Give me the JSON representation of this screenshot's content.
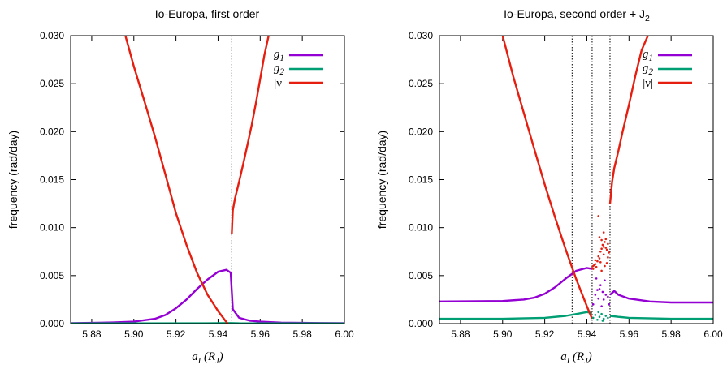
{
  "chart_data": [
    {
      "type": "line",
      "title": "Io-Europa, first order",
      "ylabel": "frequency (rad/day)",
      "xlabel_main": "a",
      "xlabel_sub": "I",
      "xlabel_unit_main": "R",
      "xlabel_unit_sub": "J",
      "xlim": [
        5.87,
        6.0
      ],
      "ylim": [
        0,
        0.03
      ],
      "xticks": [
        "5.88",
        "5.90",
        "5.92",
        "5.94",
        "5.96",
        "5.98",
        "6.00"
      ],
      "yticks": [
        "0.000",
        "0.005",
        "0.010",
        "0.015",
        "0.020",
        "0.025",
        "0.030"
      ],
      "vlines": [
        5.9465
      ],
      "legend_position": "top-right",
      "series": [
        {
          "name": "g1",
          "label_main": "g",
          "label_sub": "1",
          "color": "#9400d3",
          "x": [
            5.87,
            5.88,
            5.89,
            5.9,
            5.91,
            5.915,
            5.92,
            5.925,
            5.93,
            5.935,
            5.94,
            5.944,
            5.946,
            5.947,
            5.95,
            5.955,
            5.96,
            5.97,
            5.98,
            5.99,
            6.0
          ],
          "y": [
            5e-05,
            8e-05,
            0.00012,
            0.0002,
            0.0005,
            0.0009,
            0.0016,
            0.0025,
            0.0036,
            0.0046,
            0.0054,
            0.0056,
            0.0053,
            0.0015,
            0.0006,
            0.0003,
            0.0002,
            0.0001,
            8e-05,
            6e-05,
            5e-05
          ]
        },
        {
          "name": "g2",
          "label_main": "g",
          "label_sub": "2",
          "color": "#009e73",
          "x": [
            5.87,
            5.94,
            5.946,
            5.95,
            6.0
          ],
          "y": [
            2e-05,
            4e-05,
            6e-05,
            3e-05,
            2e-05
          ]
        },
        {
          "name": "|ν|",
          "label_text": "|ν|",
          "color": "#e51e10",
          "x": [
            5.896,
            5.9,
            5.905,
            5.91,
            5.915,
            5.92,
            5.925,
            5.93,
            5.935,
            5.94,
            5.9445
          ],
          "y": [
            0.03,
            0.0268,
            0.0232,
            0.0195,
            0.0155,
            0.0115,
            0.0082,
            0.0053,
            0.003,
            0.0013,
            0.0
          ],
          "x2": [
            5.9465,
            5.947,
            5.948,
            5.95,
            5.952,
            5.954,
            5.956,
            5.958,
            5.96,
            5.962,
            5.964
          ],
          "y2": [
            0.0093,
            0.0118,
            0.013,
            0.0148,
            0.0167,
            0.0187,
            0.0207,
            0.023,
            0.0255,
            0.028,
            0.03
          ]
        }
      ]
    },
    {
      "type": "line",
      "title_main": "Io-Europa, second order + J",
      "title_sub": "2",
      "ylabel": "frequency (rad/day)",
      "xlabel_main": "a",
      "xlabel_sub": "I",
      "xlabel_unit_main": "R",
      "xlabel_unit_sub": "J",
      "xlim": [
        5.87,
        6.0
      ],
      "ylim": [
        0,
        0.03
      ],
      "xticks": [
        "5.88",
        "5.90",
        "5.92",
        "5.94",
        "5.96",
        "5.98",
        "6.00"
      ],
      "yticks": [
        "0.000",
        "0.005",
        "0.010",
        "0.015",
        "0.020",
        "0.025",
        "0.030"
      ],
      "vlines": [
        5.933,
        5.9425,
        5.951
      ],
      "legend_position": "top-right",
      "series": [
        {
          "name": "g1",
          "label_main": "g",
          "label_sub": "1",
          "color": "#9400d3",
          "x": [
            5.87,
            5.9,
            5.91,
            5.915,
            5.92,
            5.925,
            5.93,
            5.935,
            5.94,
            5.9425
          ],
          "y": [
            0.0023,
            0.00235,
            0.0025,
            0.0027,
            0.0031,
            0.0038,
            0.0047,
            0.0055,
            0.0058,
            0.0057
          ],
          "x2": [
            5.951,
            5.953,
            5.955,
            5.96,
            5.97,
            5.98,
            5.99,
            6.0
          ],
          "y2": [
            0.003,
            0.0034,
            0.003,
            0.0026,
            0.0023,
            0.0022,
            0.0022,
            0.0022
          ]
        },
        {
          "name": "g2",
          "label_main": "g",
          "label_sub": "2",
          "color": "#009e73",
          "x": [
            5.87,
            5.9,
            5.92,
            5.93,
            5.935,
            5.94,
            5.9425
          ],
          "y": [
            0.0005,
            0.0005,
            0.0006,
            0.0008,
            0.001,
            0.0012,
            0.0011
          ],
          "x2": [
            5.951,
            5.955,
            5.96,
            5.98,
            6.0
          ],
          "y2": [
            0.0008,
            0.0007,
            0.0006,
            0.0005,
            0.0005
          ]
        },
        {
          "name": "|ν|",
          "label_text": "|ν|",
          "color": "#e51e10",
          "x": [
            5.9,
            5.905,
            5.91,
            5.915,
            5.92,
            5.925,
            5.93,
            5.935,
            5.94,
            5.9425
          ],
          "y": [
            0.03,
            0.0258,
            0.022,
            0.0182,
            0.0145,
            0.011,
            0.0077,
            0.0046,
            0.0018,
            0.0005
          ],
          "x2": [
            5.951,
            5.952,
            5.953,
            5.955,
            5.957,
            5.96,
            5.963,
            5.966,
            5.969
          ],
          "y2": [
            0.0125,
            0.0148,
            0.0162,
            0.018,
            0.02,
            0.0228,
            0.0258,
            0.0285,
            0.03
          ]
        }
      ],
      "scatter": [
        {
          "color": "#e51e10",
          "x": [
            5.9425,
            5.943,
            5.9435,
            5.944,
            5.9445,
            5.945,
            5.9455,
            5.946,
            5.9465,
            5.947,
            5.9475,
            5.948,
            5.9485,
            5.949,
            5.9495,
            5.95,
            5.9505,
            5.946,
            5.947,
            5.948,
            5.949,
            5.95,
            5.9455,
            5.948,
            5.9465,
            5.9485,
            5.947,
            5.9495,
            5.944,
            5.943
          ],
          "y": [
            0.0058,
            0.006,
            0.0061,
            0.0062,
            0.0059,
            0.0065,
            0.007,
            0.0068,
            0.0075,
            0.0078,
            0.0082,
            0.008,
            0.0085,
            0.0079,
            0.0077,
            0.0083,
            0.0074,
            0.009,
            0.0087,
            0.0072,
            0.0088,
            0.0069,
            0.0112,
            0.0095,
            0.0064,
            0.006,
            0.0055,
            0.0063,
            0.0066,
            0.0057
          ]
        },
        {
          "color": "#9400d3",
          "x": [
            5.943,
            5.944,
            5.945,
            5.946,
            5.9465,
            5.947,
            5.948,
            5.9485,
            5.949,
            5.95,
            5.9505,
            5.9475,
            5.9455,
            5.9445
          ],
          "y": [
            0.002,
            0.003,
            0.0035,
            0.0036,
            0.004,
            0.0018,
            0.0025,
            0.0045,
            0.003,
            0.0028,
            0.002,
            0.0033,
            0.0026,
            0.0047
          ]
        },
        {
          "color": "#009e73",
          "x": [
            5.943,
            5.944,
            5.945,
            5.946,
            5.947,
            5.948,
            5.949,
            5.95,
            5.9455,
            5.9475
          ],
          "y": [
            0.0006,
            0.0009,
            0.0004,
            0.0007,
            0.001,
            0.0005,
            0.0008,
            0.0006,
            0.0012,
            0.0003
          ]
        }
      ]
    }
  ]
}
